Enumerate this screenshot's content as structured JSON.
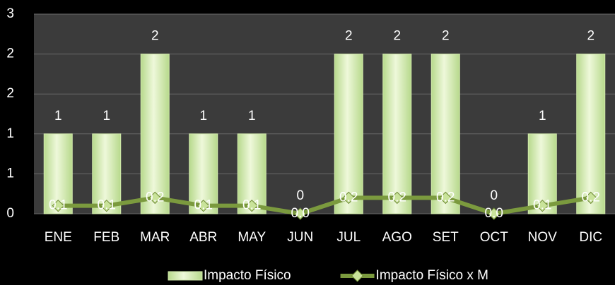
{
  "chart_data": {
    "type": "bar",
    "categories": [
      "ENE",
      "FEB",
      "MAR",
      "ABR",
      "MAY",
      "JUN",
      "JUL",
      "AGO",
      "SET",
      "OCT",
      "NOV",
      "DIC"
    ],
    "series": [
      {
        "name": "Impacto Físico",
        "type": "bar",
        "color": "#d4ecae",
        "values": [
          1,
          1,
          2,
          1,
          1,
          0,
          2,
          2,
          2,
          0,
          1,
          2
        ]
      },
      {
        "name": "Impacto Físico x M",
        "type": "line",
        "color": "#7b9a3e",
        "values": [
          0.1,
          0.1,
          0.2,
          0.1,
          0.1,
          0.0,
          0.2,
          0.2,
          0.2,
          0.0,
          0.1,
          0.2
        ],
        "value_labels": [
          "0.1",
          "0.1",
          "0.2",
          "0.1",
          "0.1",
          "0.0",
          "0.2",
          "0.2",
          "0.2",
          "0.0",
          "0.1",
          "0.2"
        ]
      }
    ],
    "ylim": [
      0,
      2.5
    ],
    "yticks": [
      0,
      {
        "value": 0.5,
        "label": "1"
      },
      1,
      {
        "value": 1.5,
        "label": "2"
      },
      2,
      {
        "value": 2.5,
        "label": "3"
      }
    ],
    "grid": true,
    "legend": "bottom"
  }
}
